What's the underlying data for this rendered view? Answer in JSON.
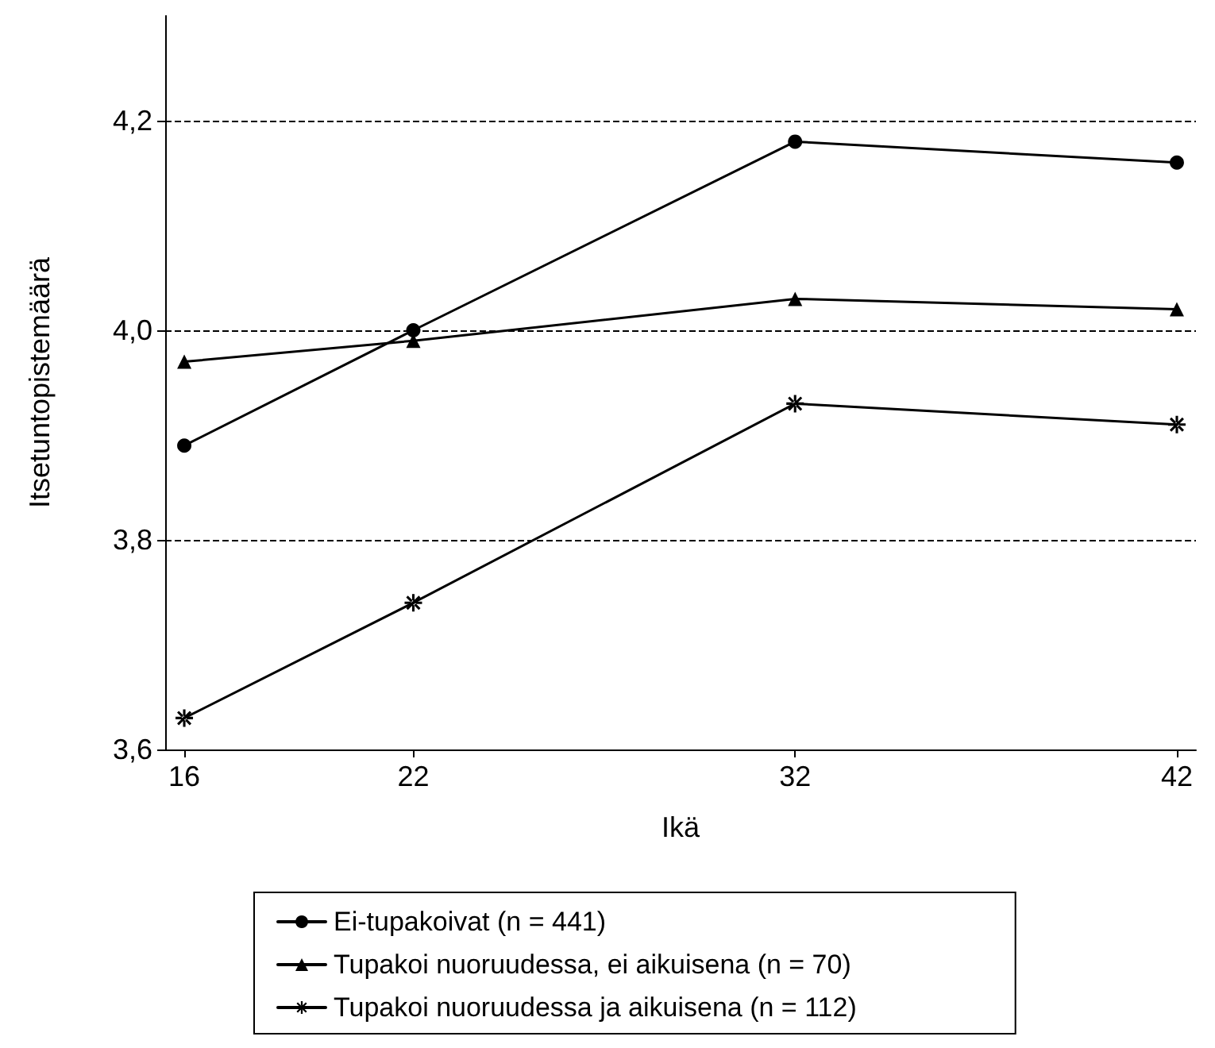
{
  "chart_data": {
    "type": "line",
    "xlabel": "Ikä",
    "ylabel": "Itsetuntopistemäärä",
    "x": [
      16,
      22,
      32,
      42
    ],
    "series": [
      {
        "name": "Ei-tupakoivat (n = 441)",
        "color": "#000000",
        "marker": "circle",
        "values": [
          3.89,
          4.0,
          4.18,
          4.16
        ]
      },
      {
        "name": "Tupakoi nuoruudessa, ei aikuisena (n = 70)",
        "color": "#000000",
        "marker": "triangle",
        "values": [
          3.97,
          3.99,
          4.03,
          4.02
        ]
      },
      {
        "name": "Tupakoi nuoruudessa ja aikuisena (n = 112)",
        "color": "#000000",
        "marker": "star",
        "values": [
          3.63,
          3.74,
          3.93,
          3.91
        ]
      }
    ],
    "xlim": [
      15.5,
      42.5
    ],
    "xticks": [
      16,
      22,
      32,
      42
    ],
    "ylim": [
      3.6,
      4.3
    ],
    "yticks": [
      {
        "value": 3.6,
        "label": "3,6"
      },
      {
        "value": 3.8,
        "label": "3,8"
      },
      {
        "value": 4.0,
        "label": "4,0"
      },
      {
        "value": 4.2,
        "label": "4,2"
      }
    ],
    "grid": "y",
    "legend": "bottom",
    "line_style": "solid"
  }
}
